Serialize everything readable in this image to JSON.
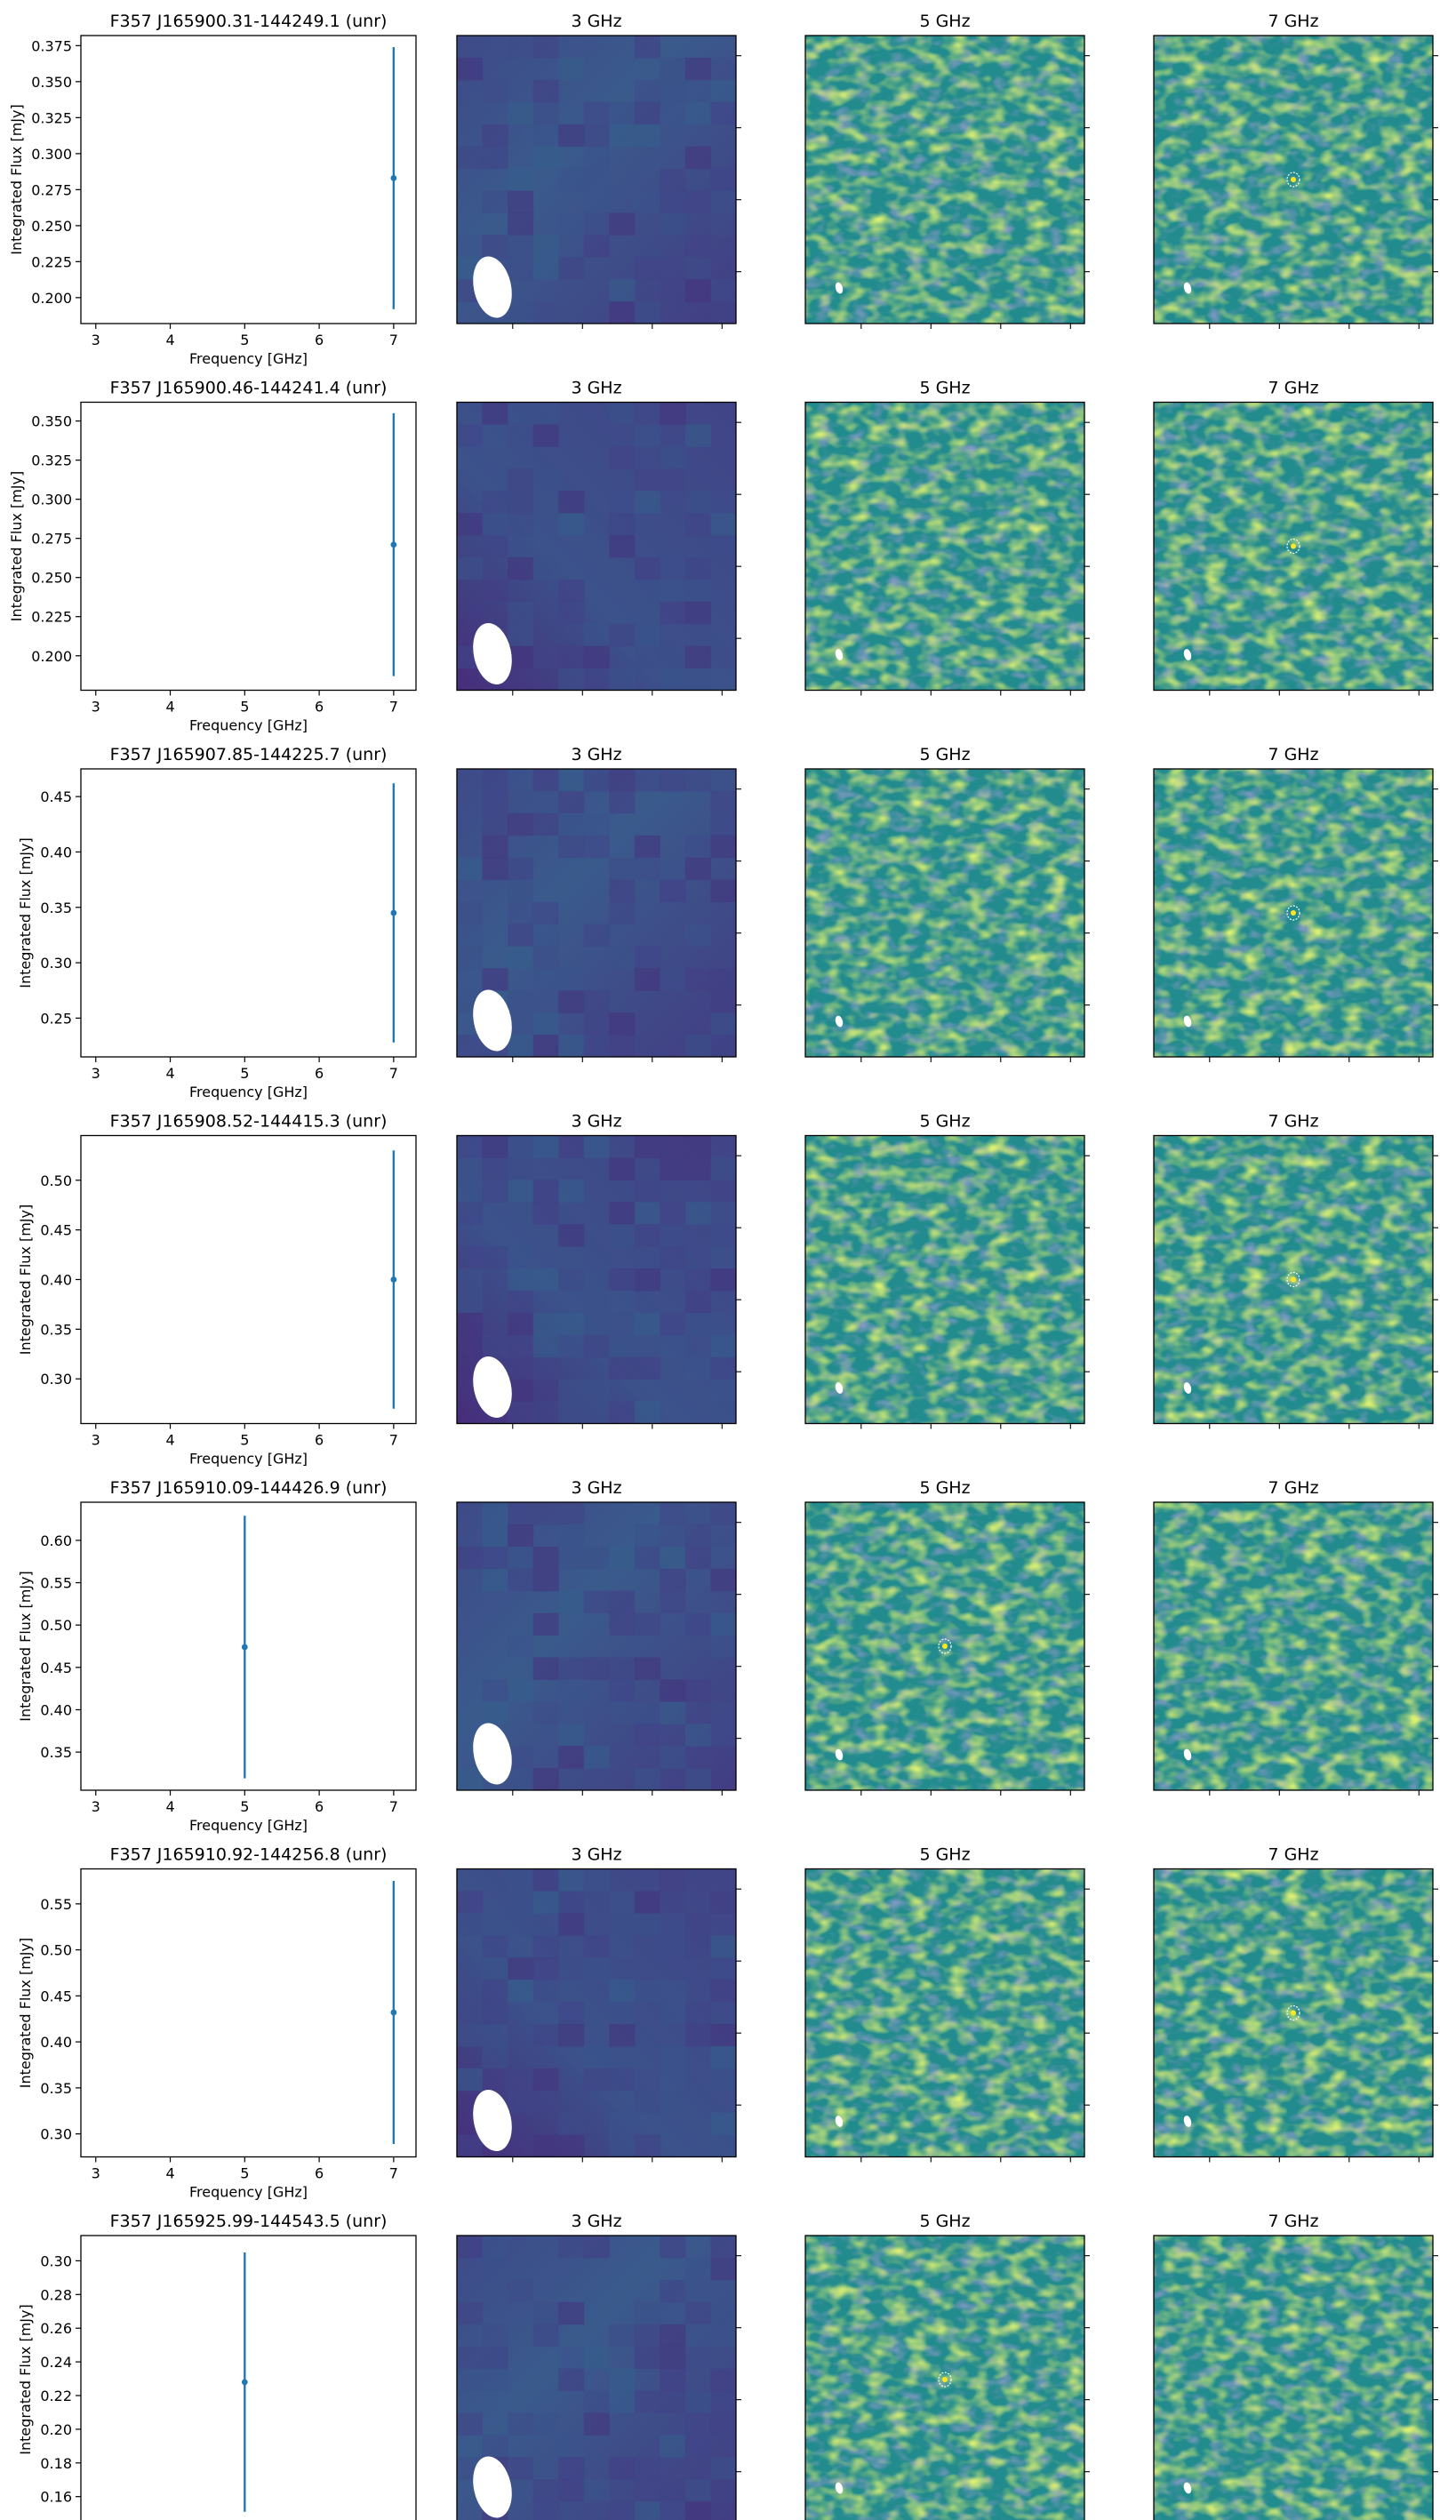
{
  "chart_data": {
    "type": "scatter",
    "panel_titles": [
      "3 GHz",
      "5 GHz",
      "7 GHz"
    ],
    "xlabel": "Frequency [GHz]",
    "ylabel": "Integrated Flux [mJy]",
    "xlim": [
      2.8,
      7.3
    ],
    "xticks": [
      3,
      4,
      5,
      6,
      7
    ],
    "marker_color": "#1f77b4",
    "rows": [
      {
        "title": "F357 J165900.31-144249.1 (unr)",
        "ylim": [
          0.182,
          0.382
        ],
        "yticks": [
          0.2,
          0.225,
          0.25,
          0.275,
          0.3,
          0.325,
          0.35,
          0.375
        ],
        "tick_decimals": 3,
        "points": [
          {
            "x": 7,
            "y": 0.283,
            "yerr": 0.091
          }
        ],
        "detected_band": "7 GHz"
      },
      {
        "title": "F357 J165900.46-144241.4 (unr)",
        "ylim": [
          0.178,
          0.362
        ],
        "yticks": [
          0.2,
          0.225,
          0.25,
          0.275,
          0.3,
          0.325,
          0.35
        ],
        "tick_decimals": 3,
        "points": [
          {
            "x": 7,
            "y": 0.271,
            "yerr": 0.084
          }
        ],
        "detected_band": "7 GHz"
      },
      {
        "title": "F357 J165907.85-144225.7 (unr)",
        "ylim": [
          0.215,
          0.475
        ],
        "yticks": [
          0.25,
          0.3,
          0.35,
          0.4,
          0.45
        ],
        "tick_decimals": 2,
        "points": [
          {
            "x": 7,
            "y": 0.345,
            "yerr": 0.117
          }
        ],
        "detected_band": "7 GHz"
      },
      {
        "title": "F357 J165908.52-144415.3 (unr)",
        "ylim": [
          0.255,
          0.545
        ],
        "yticks": [
          0.3,
          0.35,
          0.4,
          0.45,
          0.5
        ],
        "tick_decimals": 2,
        "points": [
          {
            "x": 7,
            "y": 0.4,
            "yerr": 0.13
          }
        ],
        "detected_band": "7 GHz"
      },
      {
        "title": "F357 J165910.09-144426.9 (unr)",
        "ylim": [
          0.305,
          0.645
        ],
        "yticks": [
          0.35,
          0.4,
          0.45,
          0.5,
          0.55,
          0.6
        ],
        "tick_decimals": 2,
        "points": [
          {
            "x": 5,
            "y": 0.474,
            "yerr": 0.155
          }
        ],
        "detected_band": "5 GHz"
      },
      {
        "title": "F357 J165910.92-144256.8 (unr)",
        "ylim": [
          0.275,
          0.588
        ],
        "yticks": [
          0.3,
          0.35,
          0.4,
          0.45,
          0.5,
          0.55
        ],
        "tick_decimals": 2,
        "points": [
          {
            "x": 7,
            "y": 0.432,
            "yerr": 0.143
          }
        ],
        "detected_band": "7 GHz"
      },
      {
        "title": "F357 J165925.99-144543.5 (unr)",
        "ylim": [
          0.144,
          0.315
        ],
        "yticks": [
          0.16,
          0.18,
          0.2,
          0.22,
          0.24,
          0.26,
          0.28,
          0.3
        ],
        "tick_decimals": 2,
        "points": [
          {
            "x": 5,
            "y": 0.228,
            "yerr": 0.077
          }
        ],
        "detected_band": "5 GHz"
      }
    ]
  }
}
